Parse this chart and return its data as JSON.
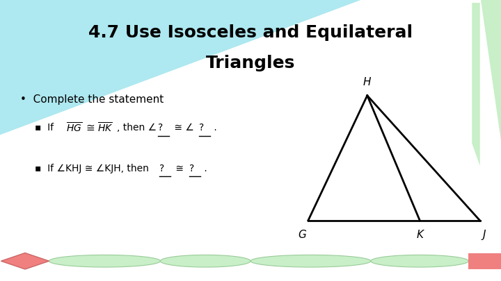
{
  "title_line1": "4.7 Use Isosceles and Equilateral",
  "title_line2": "Triangles",
  "bg_color": "#ffffff",
  "header_triangle_color": "#aee8f0",
  "header_triangle_color2": "#c8efc8",
  "label_G": "G",
  "label_H": "H",
  "label_K": "K",
  "label_J": "J",
  "bottom_bar_color": "#c8efc8",
  "bottom_diamond_color": "#f08080",
  "bottom_bar_accent": "#f08080"
}
